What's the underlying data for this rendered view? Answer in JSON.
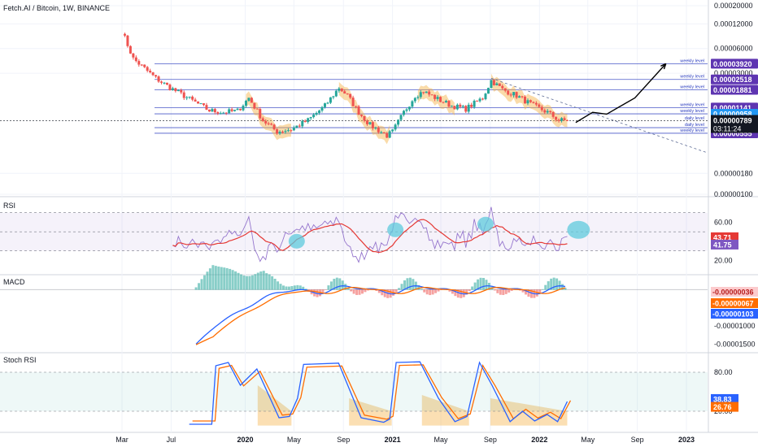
{
  "header": {
    "title": "Fetch.AI / Bitcoin, 1W, BINANCE"
  },
  "colors": {
    "up": "#26a69a",
    "down": "#ef5350",
    "highlight": "#f5b041",
    "bubble": "#5dc9dc",
    "level": "#2b3dbf",
    "rsi_line": "#9575cd",
    "rsi_ma": "#e53935",
    "macd_line": "#2962ff",
    "signal_line": "#ff6d00",
    "stoch_k": "#2962ff",
    "stoch_d": "#ff6d00",
    "grid": "#f0f3fa"
  },
  "price_axis": {
    "ticks": [
      "0.00020000",
      "0.00012000",
      "0.00006000",
      "0.00003000",
      "0.00000180",
      "0.00000100"
    ],
    "tick_values": [
      0.0002,
      0.00012,
      6e-05,
      3e-05,
      1.8e-06,
      1e-06
    ]
  },
  "levels": [
    {
      "value": 3.92e-05,
      "label": "0.00003920",
      "name": "weekly level",
      "color": "#5e35b1"
    },
    {
      "value": 2.518e-05,
      "label": "0.00002518",
      "name": "weekly level",
      "color": "#5e35b1"
    },
    {
      "value": 1.881e-05,
      "label": "0.00001881",
      "name": "weekly level",
      "color": "#5e35b1"
    },
    {
      "value": 1.141e-05,
      "label": "0.00001141",
      "name": "weekly level",
      "color": "#5e35b1"
    },
    {
      "value": 9.58e-06,
      "label": "0.00000958",
      "name": "weekly level",
      "color": "#2196f3"
    },
    {
      "value": 6.5e-06,
      "label": "0.00000650",
      "name": "daily level",
      "color": "#2196f3"
    },
    {
      "value": 5.55e-06,
      "label": "0.00000555",
      "name": "weekly level",
      "color": "#5e35b1"
    }
  ],
  "current_price": {
    "label": "0.00000789",
    "countdown": "03:11:24",
    "daily_label": "daily level"
  },
  "time_axis": [
    "Mar",
    "Jul",
    "2020",
    "May",
    "Sep",
    "2021",
    "May",
    "Sep",
    "2022",
    "May",
    "Sep",
    "2023"
  ],
  "rsi": {
    "title": "RSI",
    "ticks": [
      "60.00",
      "40.00",
      "20.00"
    ],
    "tick_values": [
      60,
      40,
      20
    ],
    "band": [
      30,
      70
    ],
    "ma_label": "43.71",
    "rsi_label": "41.75"
  },
  "macd": {
    "title": "MACD",
    "ticks": [
      "-0.00001000",
      "-0.00001500"
    ],
    "tick_values": [
      -1e-05,
      -1.5e-05
    ],
    "hist_label": "-0.00000036",
    "signal_label": "-0.00000067",
    "macd_label": "-0.00000103"
  },
  "stoch": {
    "title": "Stoch RSI",
    "ticks": [
      "80.00",
      "40.00",
      "20.00"
    ],
    "tick_values": [
      80,
      40,
      20
    ],
    "band": [
      20,
      80
    ],
    "k_label": "38.83",
    "d_label": "26.76"
  },
  "chart_data": {
    "type": "candlestick",
    "title": "Fetch.AI / Bitcoin, 1W, BINANCE",
    "scale": "log",
    "anchors": [
      {
        "date": "2019-03-01",
        "price": 9.8e-05
      },
      {
        "date": "2019-03-29",
        "price": 4.5e-05
      },
      {
        "date": "2019-05-24",
        "price": 2.6e-05
      },
      {
        "date": "2019-06-28",
        "price": 2e-05
      },
      {
        "date": "2019-08-16",
        "price": 1.45e-05
      },
      {
        "date": "2019-10-04",
        "price": 1.05e-05
      },
      {
        "date": "2019-11-08",
        "price": 1e-05
      },
      {
        "date": "2019-12-13",
        "price": 1.04e-05
      },
      {
        "date": "2020-01-10",
        "price": 1.5e-05
      },
      {
        "date": "2020-02-14",
        "price": 8e-06
      },
      {
        "date": "2020-03-20",
        "price": 5.8e-06
      },
      {
        "date": "2020-04-24",
        "price": 6.2e-06
      },
      {
        "date": "2020-06-05",
        "price": 8e-06
      },
      {
        "date": "2020-07-17",
        "price": 1.2e-05
      },
      {
        "date": "2020-08-21",
        "price": 2e-05
      },
      {
        "date": "2020-09-11",
        "price": 1.6e-05
      },
      {
        "date": "2020-10-09",
        "price": 1e-05
      },
      {
        "date": "2020-11-06",
        "price": 7e-06
      },
      {
        "date": "2020-12-18",
        "price": 5.2e-06
      },
      {
        "date": "2021-01-01",
        "price": 5.8e-06
      },
      {
        "date": "2021-01-29",
        "price": 1e-05
      },
      {
        "date": "2021-02-26",
        "price": 1.6e-05
      },
      {
        "date": "2021-03-19",
        "price": 1.8e-05
      },
      {
        "date": "2021-04-23",
        "price": 1.45e-05
      },
      {
        "date": "2021-05-28",
        "price": 1.2e-05
      },
      {
        "date": "2021-07-02",
        "price": 1.1e-05
      },
      {
        "date": "2021-08-13",
        "price": 1.5e-05
      },
      {
        "date": "2021-09-03",
        "price": 2.45e-05
      },
      {
        "date": "2021-10-01",
        "price": 1.9e-05
      },
      {
        "date": "2021-11-05",
        "price": 1.6e-05
      },
      {
        "date": "2021-12-17",
        "price": 1.2e-05
      },
      {
        "date": "2022-01-21",
        "price": 1e-05
      },
      {
        "date": "2022-02-18",
        "price": 8e-06
      },
      {
        "date": "2022-03-11",
        "price": 7.9e-06
      }
    ],
    "last_price": 7.89e-06,
    "projection": [
      {
        "date": "2022-04-01",
        "price": 7.5e-06
      },
      {
        "date": "2022-05-13",
        "price": 1e-05
      },
      {
        "date": "2022-06-17",
        "price": 9.5e-06
      },
      {
        "date": "2022-08-26",
        "price": 1.5e-05
      },
      {
        "date": "2022-11-11",
        "price": 3.92e-05
      }
    ]
  }
}
